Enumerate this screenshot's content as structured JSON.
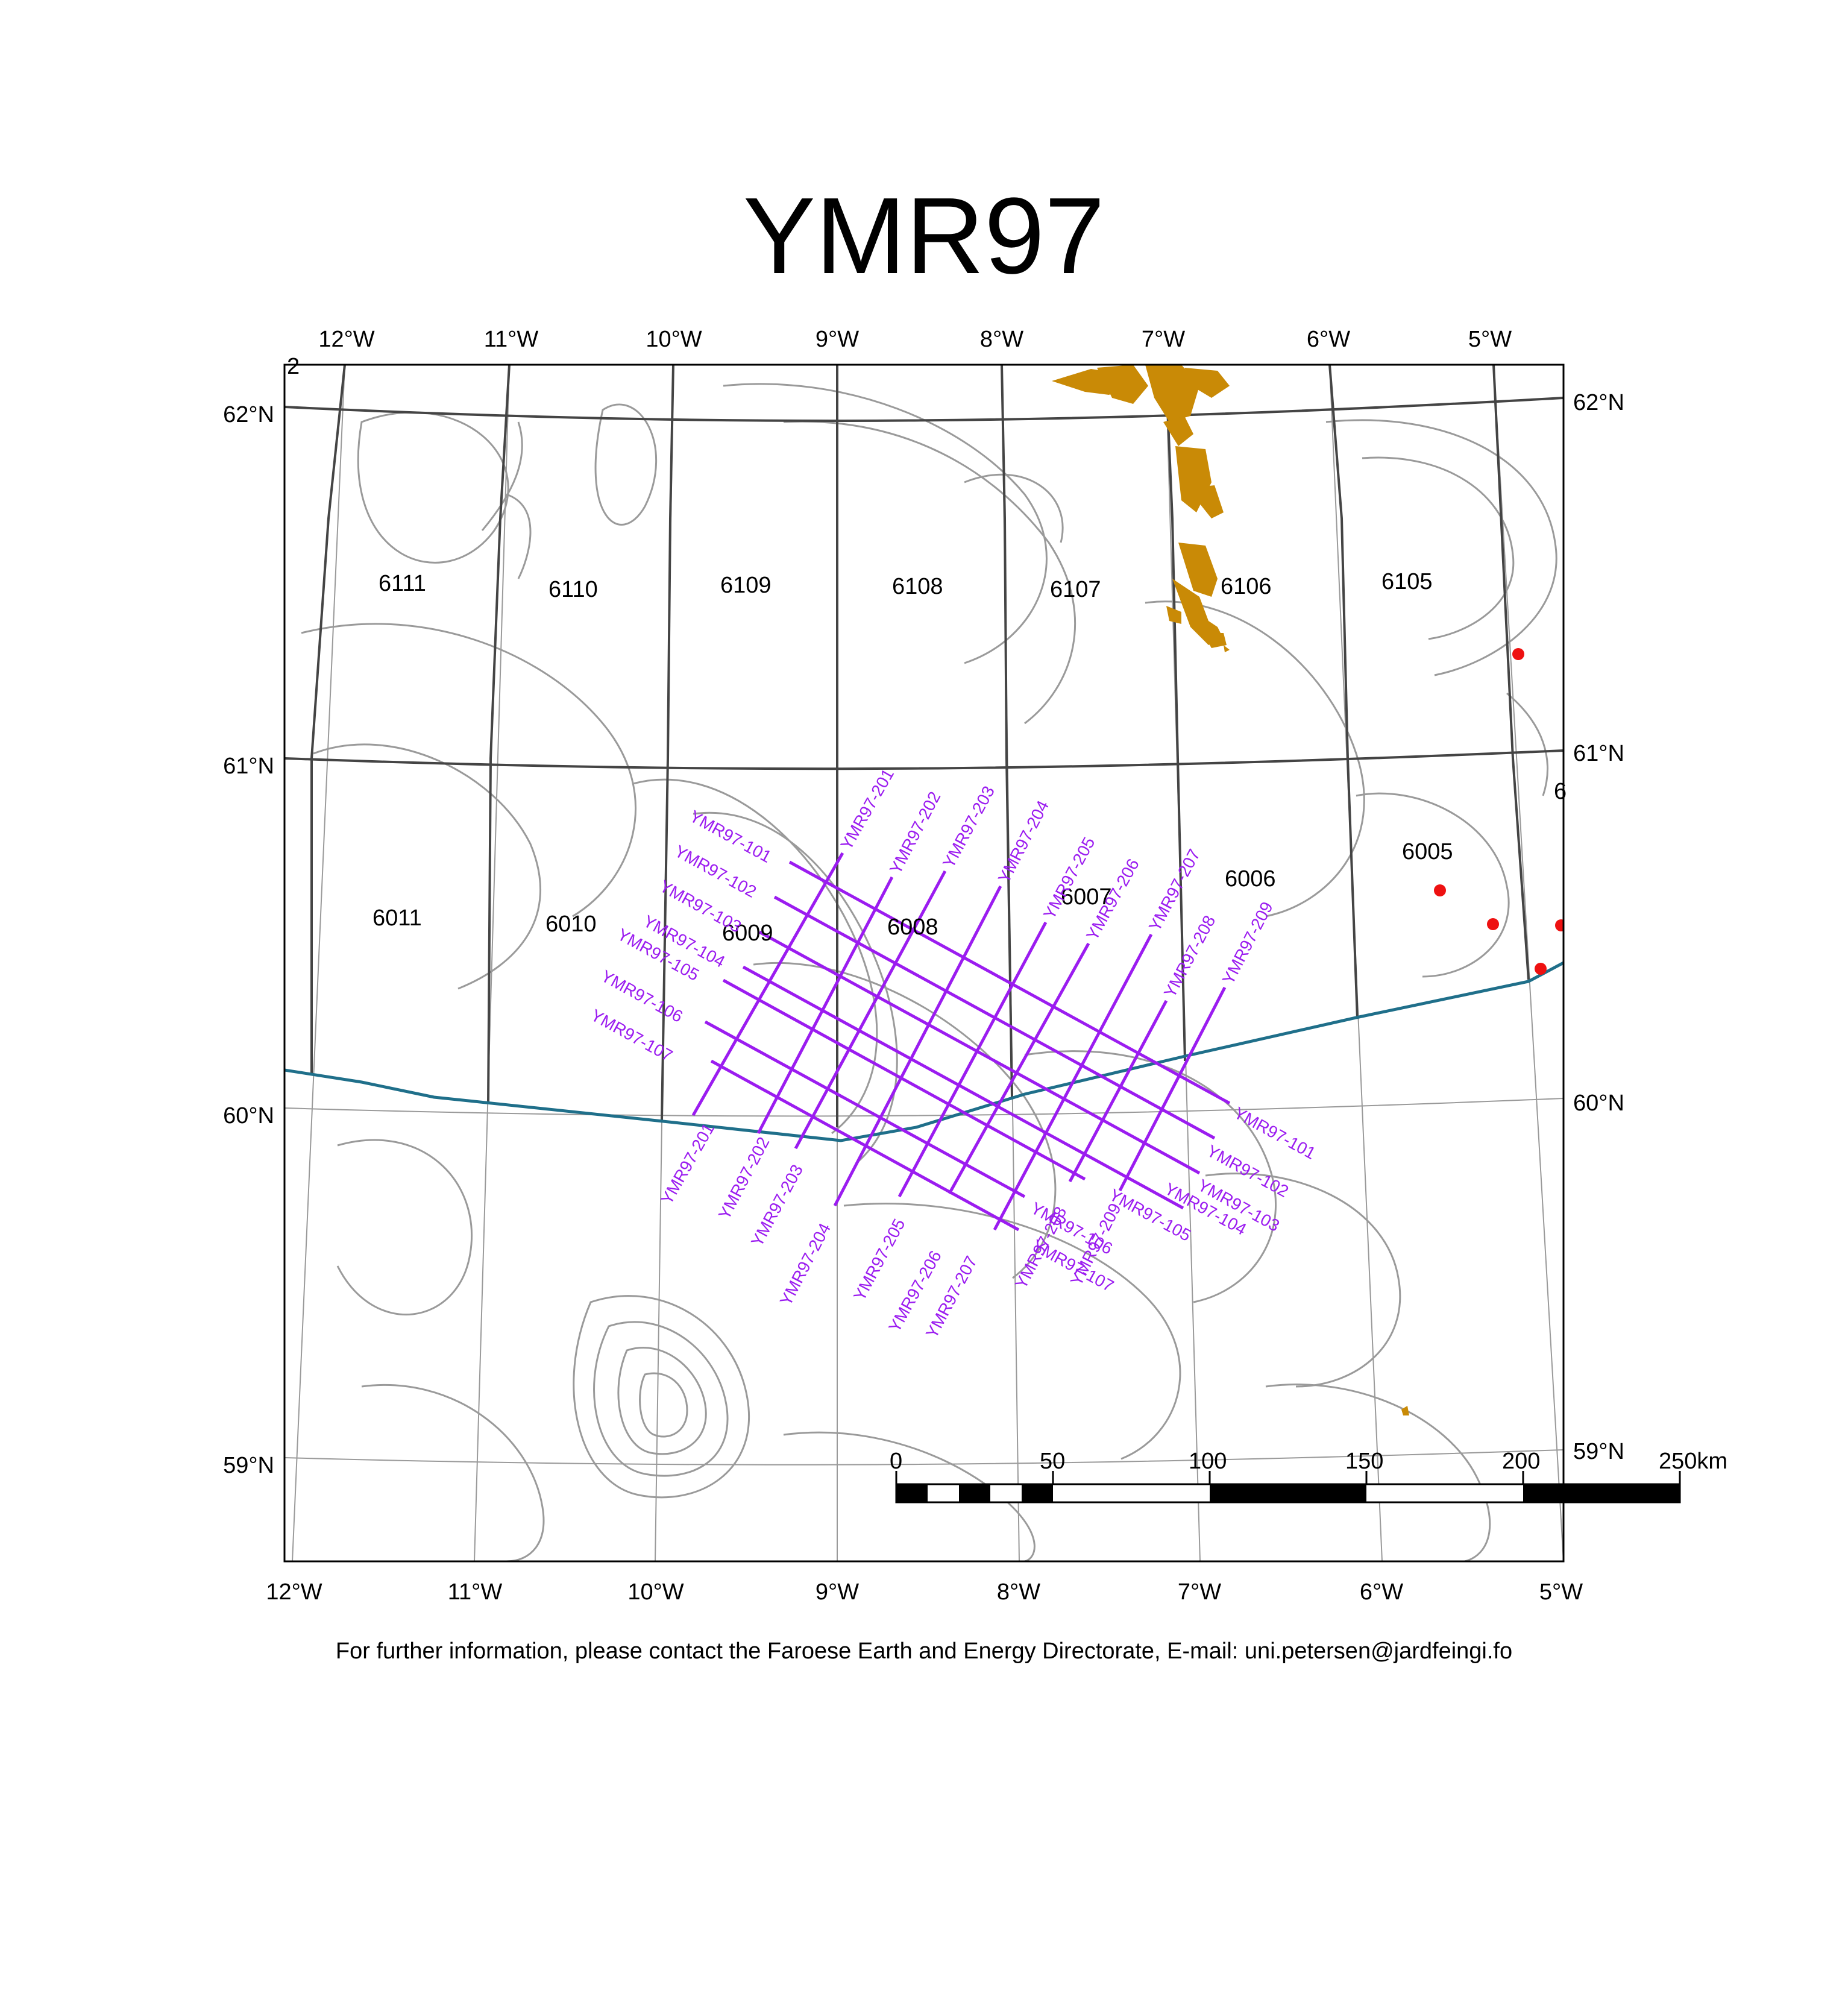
{
  "title": "YMR97",
  "footer": "For further information, please contact the Faroese Earth and Energy Directorate, E-mail: uni.petersen@jardfeingi.fo",
  "corner_mark": "2",
  "colors": {
    "survey_line": "#9b1cf0",
    "land": "#c98a06",
    "well": "#ee1111",
    "boundary": "#1f6f8a",
    "contour": "#9a9a9a",
    "grid": "#555555",
    "graticule": "#9a9a9a"
  },
  "top_lon_labels": [
    "12°W",
    "11°W",
    "10°W",
    "9°W",
    "8°W",
    "7°W",
    "6°W",
    "5°W"
  ],
  "bottom_lon_labels": [
    "12°W",
    "11°W",
    "10°W",
    "9°W",
    "8°W",
    "7°W",
    "6°W",
    "5°W"
  ],
  "left_lat_labels": [
    "62°N",
    "61°N",
    "60°N",
    "59°N"
  ],
  "right_lat_labels": [
    "62°N",
    "61°N",
    "60°N",
    "59°N"
  ],
  "blocks": [
    "6111",
    "6110",
    "6109",
    "6108",
    "6107",
    "6106",
    "6105",
    "6011",
    "6010",
    "6009",
    "6008",
    "6007",
    "6006",
    "6005",
    "6"
  ],
  "lines_100": [
    "YMR97-101",
    "YMR97-102",
    "YMR97-103",
    "YMR97-104",
    "YMR97-105",
    "YMR97-106",
    "YMR97-107"
  ],
  "lines_200": [
    "YMR97-201",
    "YMR97-202",
    "YMR97-203",
    "YMR97-204",
    "YMR97-205",
    "YMR97-206",
    "YMR97-207",
    "YMR97-208",
    "YMR97-209"
  ],
  "scale_bar": {
    "labels": [
      "0",
      "50",
      "100",
      "150",
      "200",
      "250km"
    ]
  }
}
